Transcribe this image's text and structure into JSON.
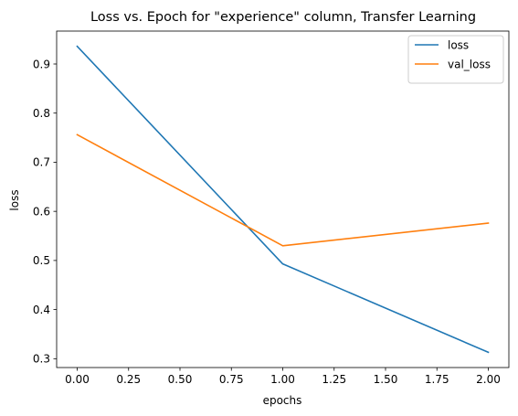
{
  "chart_data": {
    "type": "line",
    "title": "Loss vs. Epoch for \"experience\" column, Transfer Learning",
    "xlabel": "epochs",
    "ylabel": "loss",
    "x": [
      0,
      1,
      2
    ],
    "xlim": [
      -0.1,
      2.1
    ],
    "ylim": [
      0.282,
      0.967
    ],
    "x_ticks": [
      0.0,
      0.25,
      0.5,
      0.75,
      1.0,
      1.25,
      1.5,
      1.75,
      2.0
    ],
    "x_tick_labels": [
      "0.00",
      "0.25",
      "0.50",
      "0.75",
      "1.00",
      "1.25",
      "1.50",
      "1.75",
      "2.00"
    ],
    "y_ticks": [
      0.3,
      0.4,
      0.5,
      0.6,
      0.7,
      0.8,
      0.9
    ],
    "y_tick_labels": [
      "0.3",
      "0.4",
      "0.5",
      "0.6",
      "0.7",
      "0.8",
      "0.9"
    ],
    "grid": false,
    "legend_position": "top-right",
    "series": [
      {
        "name": "loss",
        "color": "#1f77b4",
        "values": [
          0.936,
          0.493,
          0.313
        ]
      },
      {
        "name": "val_loss",
        "color": "#ff7f0e",
        "values": [
          0.756,
          0.53,
          0.576
        ]
      }
    ]
  }
}
